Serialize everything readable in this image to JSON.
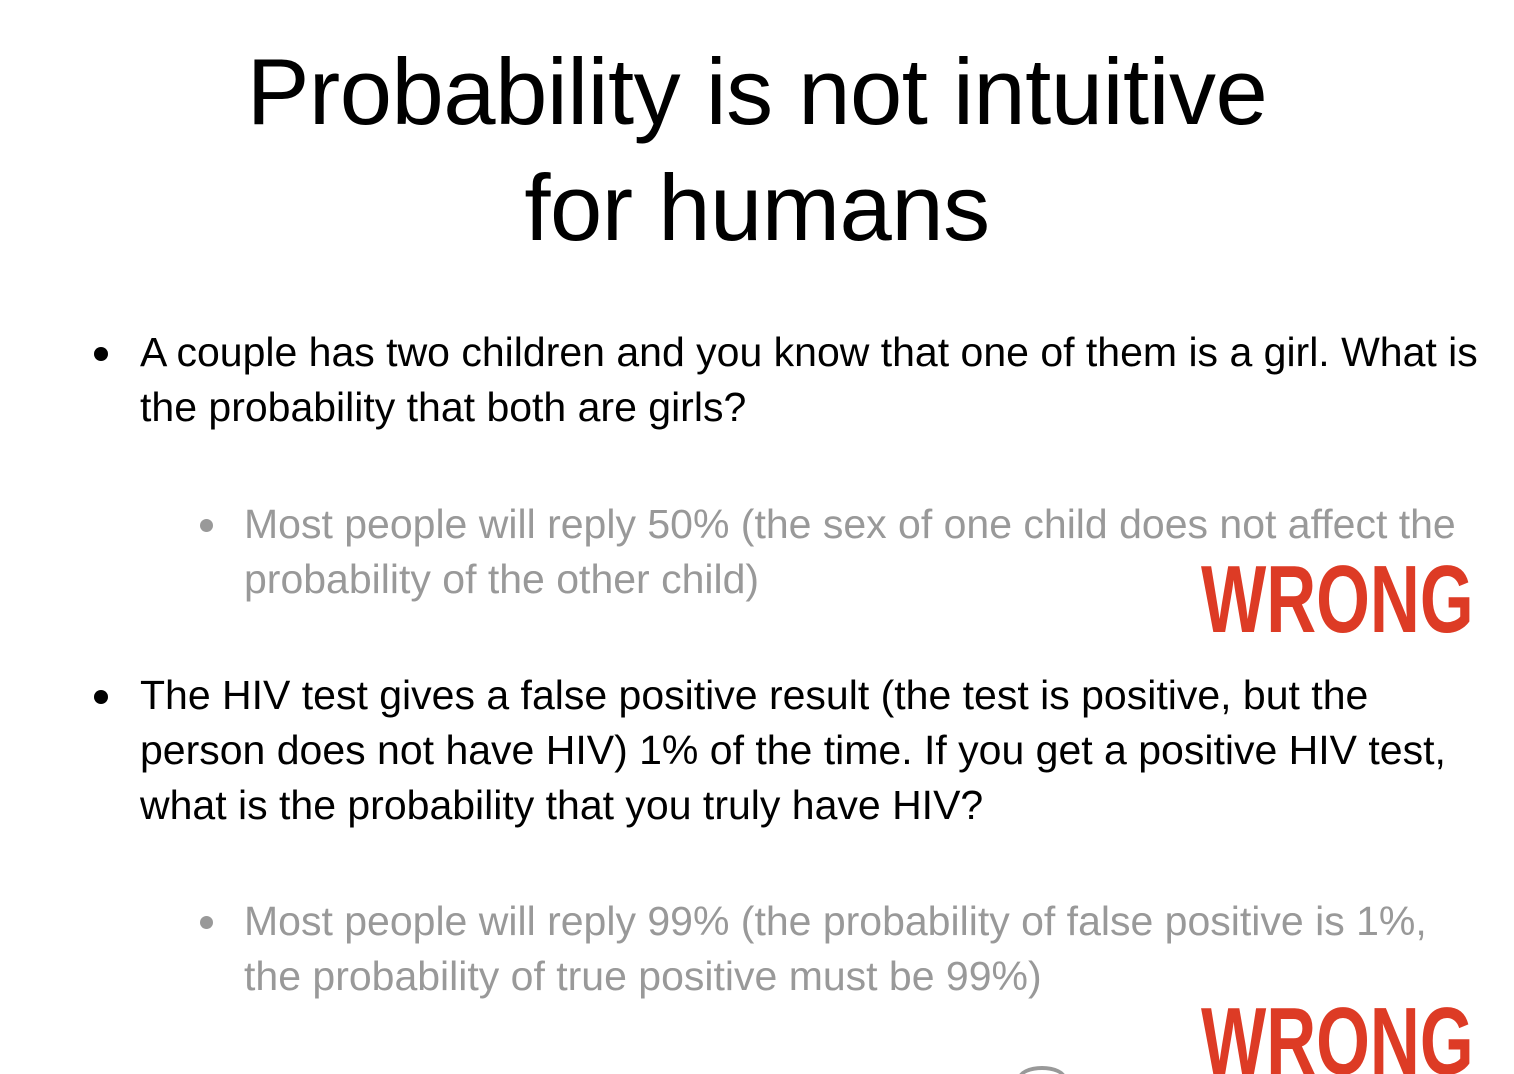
{
  "slide": {
    "title": {
      "line1": "Probability is not intuitive",
      "line2": "for humans"
    },
    "bullets": [
      {
        "level": 1,
        "text": "A couple has two children and you know that one of them is a girl. What is the probability that both are girls?"
      },
      {
        "level": 2,
        "text": "Most people will reply 50% (the sex of one child does not affect the probability of the other child)"
      },
      {
        "level": 1,
        "text": "The HIV test gives a false positive result (the test is positive, but the person does not have HIV) 1% of the time. If you get a positive HIV test, what is the probability that you truly have HIV?"
      },
      {
        "level": 2,
        "text": "Most people will reply 99% (the probability of false positive is 1%, the probability of true positive must be 99%)"
      }
    ],
    "stamps": [
      "WRONG",
      "WRONG"
    ],
    "colors": {
      "text": "#000000",
      "sub_text": "#999999",
      "stamp": "#dd3b25",
      "background": "#ffffff"
    }
  }
}
